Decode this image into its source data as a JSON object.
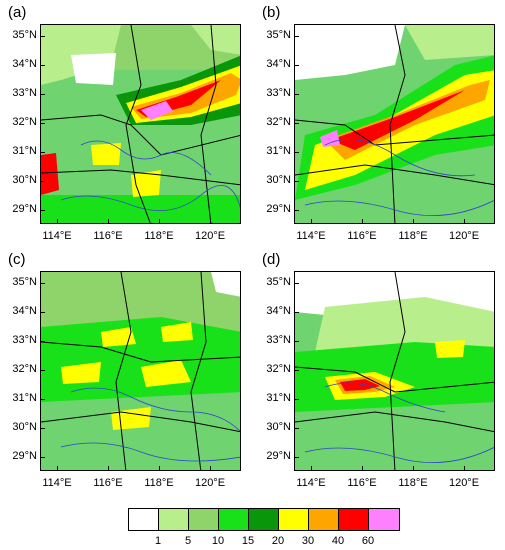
{
  "panels": [
    {
      "label": "(a)"
    },
    {
      "label": "(b)"
    },
    {
      "label": "(c)"
    },
    {
      "label": "(d)"
    }
  ],
  "y_ticks": [
    "35°N",
    "34°N",
    "33°N",
    "32°N",
    "31°N",
    "30°N",
    "29°N"
  ],
  "x_ticks": [
    "114°E",
    "116°E",
    "118°E",
    "120°E"
  ],
  "colorbar": {
    "colors": [
      "#ffffff",
      "#b8ee8c",
      "#8ed46a",
      "#19e119",
      "#0a960a",
      "#ffff00",
      "#ffa500",
      "#ff0000",
      "#ff80ff"
    ],
    "labels": [
      "1",
      "5",
      "10",
      "15",
      "20",
      "30",
      "40",
      "60"
    ]
  }
}
